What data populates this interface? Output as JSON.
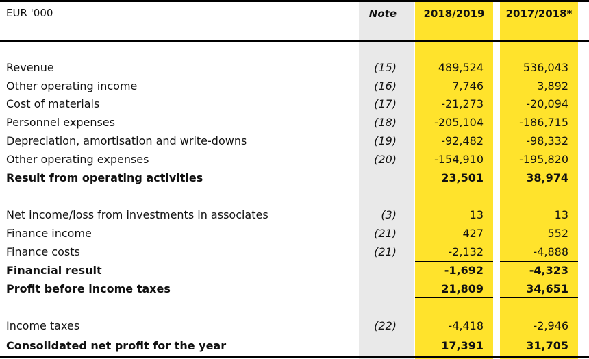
{
  "header": {
    "unit": "EUR '000",
    "note": "Note",
    "col1": "2018/2019",
    "col2": "2017/2018*"
  },
  "rows": [
    {
      "label": "Revenue",
      "note": "(15)",
      "v1": "489,524",
      "v2": "536,043",
      "bold": false
    },
    {
      "label": "Other operating income",
      "note": "(16)",
      "v1": "7,746",
      "v2": "3,892",
      "bold": false
    },
    {
      "label": "Cost of materials",
      "note": "(17)",
      "v1": "-21,273",
      "v2": "-20,094",
      "bold": false
    },
    {
      "label": "Personnel expenses",
      "note": "(18)",
      "v1": "-205,104",
      "v2": "-186,715",
      "bold": false
    },
    {
      "label": "Depreciation, amortisation and write-downs",
      "note": "(19)",
      "v1": "-92,482",
      "v2": "-98,332",
      "bold": false
    },
    {
      "label": "Other operating expenses",
      "note": "(20)",
      "v1": "-154,910",
      "v2": "-195,820",
      "bold": false
    },
    {
      "label": "Result from operating activities",
      "note": "",
      "v1": "23,501",
      "v2": "38,974",
      "bold": true
    },
    {
      "label": "Net income/loss from investments in associates",
      "note": "(3)",
      "v1": "13",
      "v2": "13",
      "bold": false
    },
    {
      "label": "Finance income",
      "note": "(21)",
      "v1": "427",
      "v2": "552",
      "bold": false
    },
    {
      "label": "Finance costs",
      "note": "(21)",
      "v1": "-2,132",
      "v2": "-4,888",
      "bold": false
    },
    {
      "label": "Financial result",
      "note": "",
      "v1": "-1,692",
      "v2": "-4,323",
      "bold": true
    },
    {
      "label": "Profit before income taxes",
      "note": "",
      "v1": "21,809",
      "v2": "34,651",
      "bold": true
    },
    {
      "label": "Income taxes",
      "note": "(22)",
      "v1": "-4,418",
      "v2": "-2,946",
      "bold": false
    },
    {
      "label": "Consolidated net profit for the year",
      "note": "",
      "v1": "17,391",
      "v2": "31,705",
      "bold": true
    }
  ]
}
